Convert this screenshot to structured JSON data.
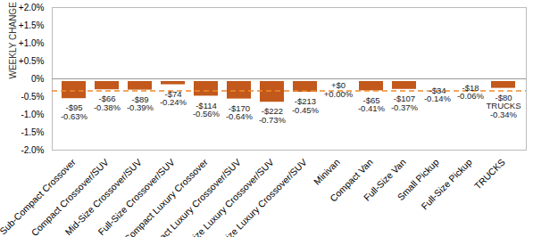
{
  "chart_data": {
    "type": "bar",
    "y_label": "WEEKLY CHANGE",
    "categories": [
      "Sub-Compact Crossover",
      "Compact Crossover/SUV",
      "Mid-Size Crossover/SUV",
      "Full-Size Crossover/SUV",
      "Sub-Compact Luxury Crossover",
      "Compact Luxury Crossover/SUV",
      "Mid-Size Luxury Crossover/SUV",
      "Full-Size Luxury Crossover/SUV",
      "Minivan",
      "Compact Van",
      "Full-Size Van",
      "Small Pickup",
      "Full-Size Pickup",
      "TRUCKS"
    ],
    "values": [
      -0.63,
      -0.38,
      -0.39,
      -0.24,
      -0.56,
      -0.64,
      -0.73,
      -0.45,
      0.0,
      -0.41,
      -0.37,
      -0.14,
      -0.06,
      -0.34
    ],
    "value_labels": [
      "-$95\n-0.63%",
      "-$66\n-0.38%",
      "-$89\n-0.39%",
      "-$74\n-0.24%",
      "-$114\n-0.56%",
      "-$170\n-0.64%",
      "-$222\n-0.73%",
      "-$213\n-0.45%",
      "+$0\n+0.00%",
      "-$65\n-0.41%",
      "-$107\n-0.37%",
      "-$34\n-0.14%",
      "-$18\n-0.06%",
      "-$80\nTRUCKS\n-0.34%"
    ],
    "average": -0.34,
    "color": "#c2581b",
    "average_color": "#ee8a2a",
    "data_labels": true,
    "grid": false,
    "ylim": [
      -2.0,
      2.0
    ],
    "yticks": [
      {
        "value": 2.0,
        "label": "+2.0%"
      },
      {
        "value": 1.5,
        "label": "+1.5%"
      },
      {
        "value": 1.0,
        "label": "+1.0%"
      },
      {
        "value": 0.5,
        "label": "+0.5%"
      },
      {
        "value": 0,
        "label": "0%"
      },
      {
        "value": -0.5,
        "label": "-0.5%"
      },
      {
        "value": -1.0,
        "label": "-1.0%"
      },
      {
        "value": -1.5,
        "label": "-1.5%"
      },
      {
        "value": -2.0,
        "label": "-2.0%"
      }
    ]
  }
}
